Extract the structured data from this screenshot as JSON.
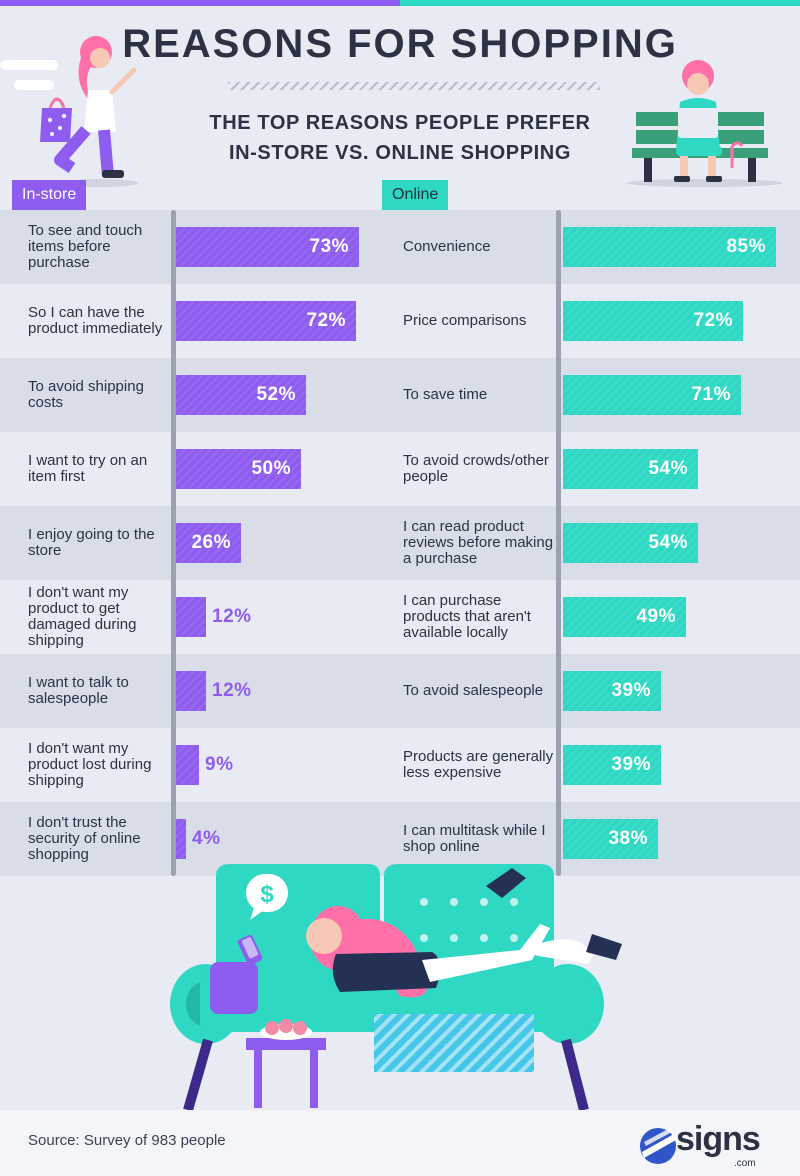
{
  "title": "REASONS FOR SHOPPING",
  "subtitle_line1": "THE TOP REASONS PEOPLE PREFER",
  "subtitle_line2": "IN-STORE VS. ONLINE SHOPPING",
  "source": "Source: Survey of 983 people",
  "logo": {
    "name": "signs",
    "suffix": ".com"
  },
  "colors": {
    "instore": "#8f5cf0",
    "online": "#2ed8c3",
    "text": "#2c3243"
  },
  "chart_data": [
    {
      "type": "bar",
      "title": "In-store",
      "orientation": "horizontal",
      "categories": [
        "To see and touch items before purchase",
        "So I can have the product immediately",
        "To avoid shipping costs",
        "I want to try on an item first",
        "I enjoy going to the store",
        "I don't want my product to get damaged during shipping",
        "I want to talk to salespeople",
        "I don't want my product lost during shipping",
        "I don't trust the security of online shopping"
      ],
      "values": [
        73,
        72,
        52,
        50,
        26,
        12,
        12,
        9,
        4
      ],
      "labels": [
        "73%",
        "72%",
        "52%",
        "50%",
        "26%",
        "12%",
        "12%",
        "9%",
        "4%"
      ],
      "xlim": [
        0,
        100
      ]
    },
    {
      "type": "bar",
      "title": "Online",
      "orientation": "horizontal",
      "categories": [
        "Convenience",
        "Price comparisons",
        "To save time",
        "To avoid crowds/other people",
        "I can read product reviews before making a purchase",
        "I can purchase products that aren't available locally",
        "To avoid salespeople",
        "Products are generally less expensive",
        "I can multitask while I shop online"
      ],
      "values": [
        85,
        72,
        71,
        54,
        54,
        49,
        39,
        39,
        38
      ],
      "labels": [
        "85%",
        "72%",
        "71%",
        "54%",
        "54%",
        "49%",
        "39%",
        "39%",
        "38%"
      ],
      "xlim": [
        0,
        100
      ]
    }
  ]
}
